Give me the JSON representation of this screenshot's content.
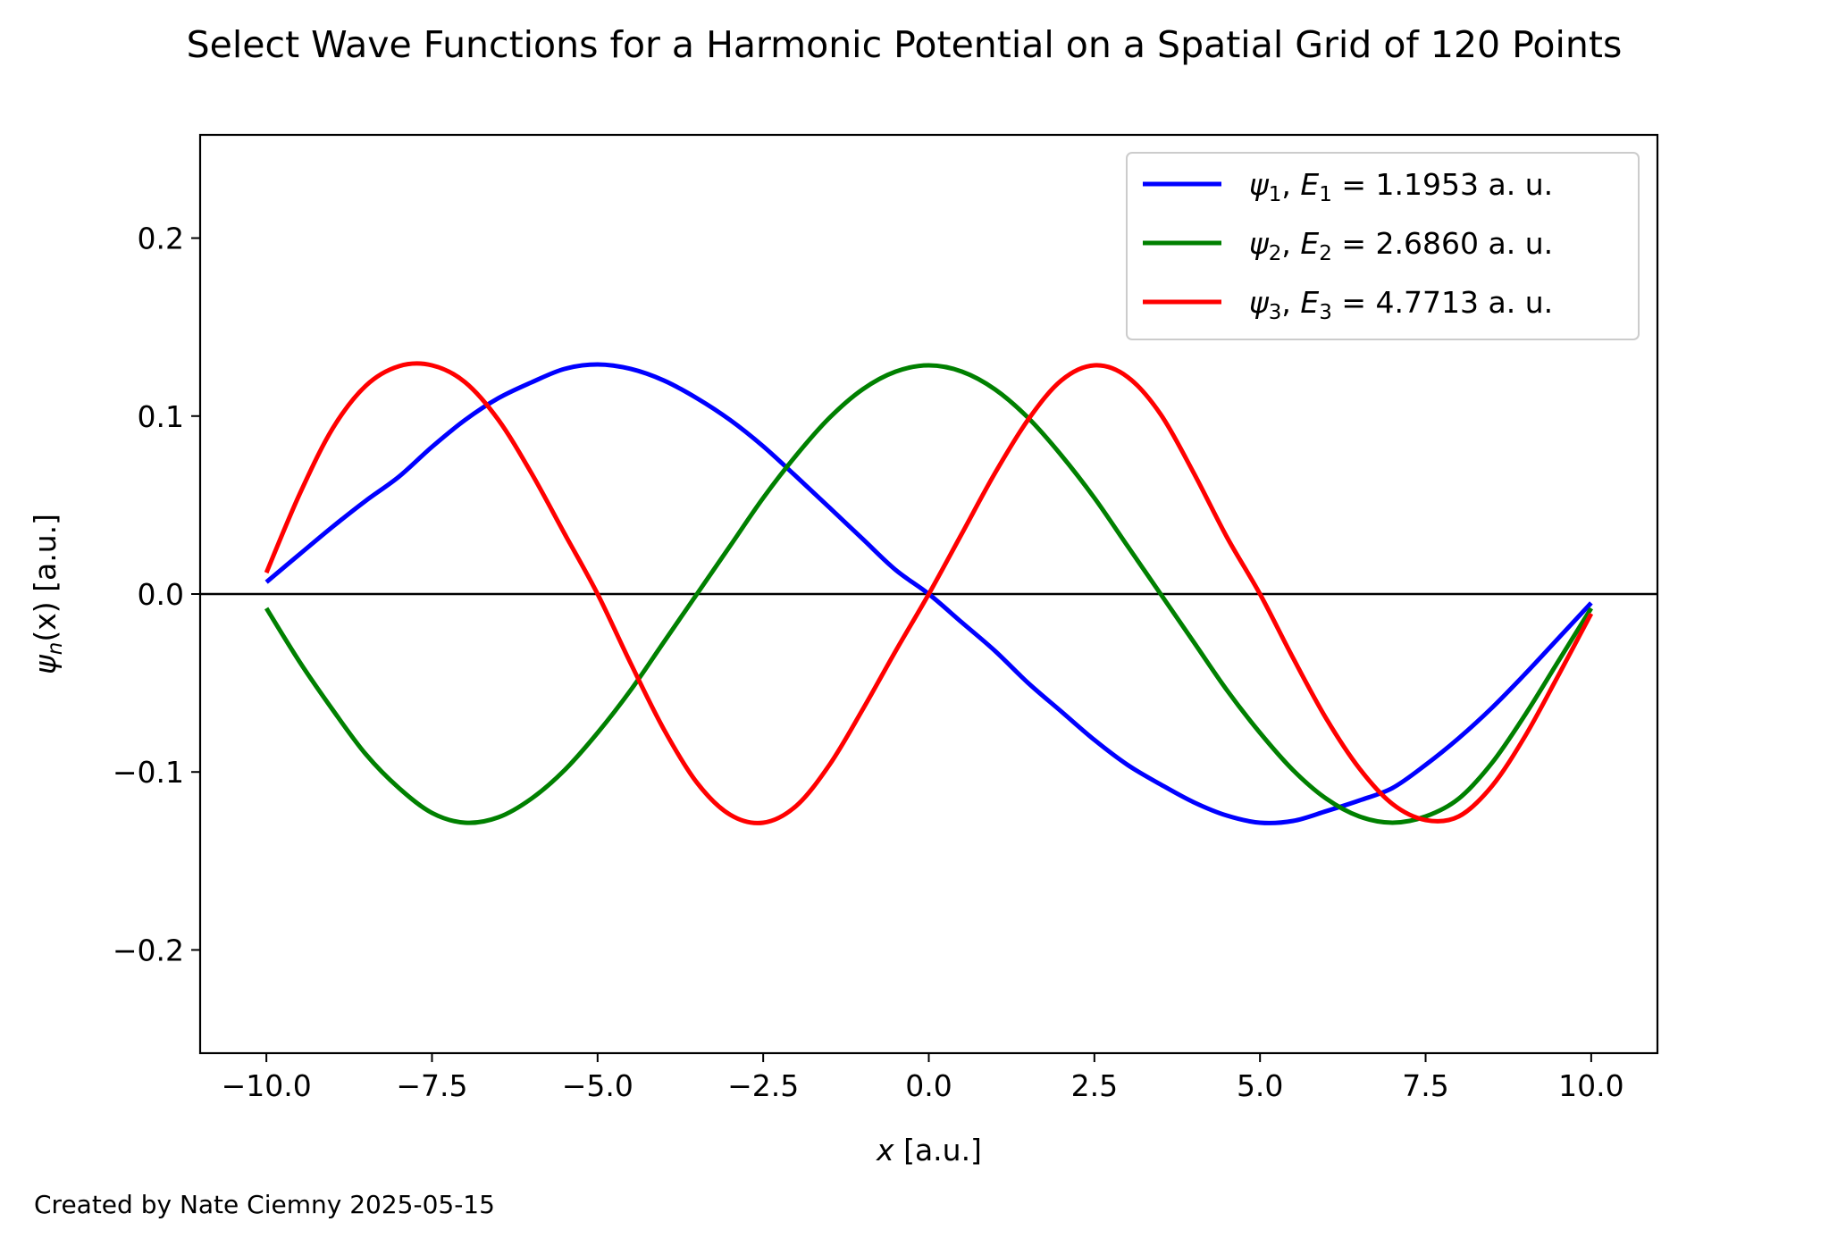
{
  "chart_data": {
    "type": "line",
    "title": "Select Wave Functions for a Harmonic Potential on a Spatial Grid of 120 Points",
    "xlabel_var": "x",
    "xlabel_unit": " [a.u.]",
    "ylabel_var": "ψ",
    "ylabel_sub": "n",
    "ylabel_arg": "(x)",
    "ylabel_unit": " [a.u.]",
    "xlim": [
      -11.0,
      11.0
    ],
    "ylim": [
      -0.258,
      0.258
    ],
    "xticks": [
      -10.0,
      -7.5,
      -5.0,
      -2.5,
      0.0,
      2.5,
      5.0,
      7.5,
      10.0
    ],
    "xtick_labels": [
      "−10.0",
      "−7.5",
      "−5.0",
      "−2.5",
      "0.0",
      "2.5",
      "5.0",
      "7.5",
      "10.0"
    ],
    "yticks": [
      -0.2,
      -0.1,
      0.0,
      0.1,
      0.2
    ],
    "ytick_labels": [
      "−0.2",
      "−0.1",
      "0.0",
      "0.1",
      "0.2"
    ],
    "grid": false,
    "legend_position": "top-right",
    "x": [
      -10.0,
      -9.5,
      -9.0,
      -8.5,
      -8.0,
      -7.5,
      -7.0,
      -6.5,
      -6.0,
      -5.5,
      -5.0,
      -4.5,
      -4.0,
      -3.5,
      -3.0,
      -2.5,
      -2.0,
      -1.5,
      -1.0,
      -0.5,
      0.0,
      0.5,
      1.0,
      1.5,
      2.0,
      2.5,
      3.0,
      3.5,
      4.0,
      4.5,
      5.0,
      5.5,
      6.0,
      6.5,
      7.0,
      7.5,
      8.0,
      8.5,
      9.0,
      9.5,
      10.0
    ],
    "series": [
      {
        "name": "ψ1,  E1 = 1.1953 a.u.",
        "color": "#0000ff",
        "label_sym": "ψ",
        "label_idx": "1",
        "label_e": "E",
        "label_val": " = 1.1953 a. u.",
        "values": [
          0.0067,
          0.0223,
          0.0378,
          0.0524,
          0.0659,
          0.0827,
          0.0978,
          0.11,
          0.1189,
          0.1265,
          0.129,
          0.1265,
          0.12,
          0.11,
          0.0978,
          0.083,
          0.066,
          0.0486,
          0.031,
          0.0135,
          0.0,
          -0.016,
          -0.032,
          -0.05,
          -0.066,
          -0.082,
          -0.096,
          -0.107,
          -0.117,
          -0.1245,
          -0.1285,
          -0.1275,
          -0.122,
          -0.116,
          -0.109,
          -0.096,
          -0.081,
          -0.064,
          -0.045,
          -0.025,
          -0.005
        ]
      },
      {
        "name": "ψ2,  E2 = 2.6860 a.u.",
        "color": "#008000",
        "label_sym": "ψ",
        "label_idx": "2",
        "label_e": "E",
        "label_val": " = 2.6860 a. u.",
        "values": [
          -0.008,
          -0.038,
          -0.065,
          -0.09,
          -0.109,
          -0.123,
          -0.1285,
          -0.1255,
          -0.115,
          -0.099,
          -0.078,
          -0.054,
          -0.027,
          0.0,
          0.027,
          0.054,
          0.078,
          0.099,
          0.115,
          0.125,
          0.1285,
          0.125,
          0.115,
          0.099,
          0.078,
          0.054,
          0.027,
          0.0,
          -0.027,
          -0.054,
          -0.078,
          -0.099,
          -0.115,
          -0.125,
          -0.1285,
          -0.125,
          -0.115,
          -0.095,
          -0.068,
          -0.038,
          -0.008
        ]
      },
      {
        "name": "ψ3,  E3 = 4.7713 a.u.",
        "color": "#ff0000",
        "label_sym": "ψ",
        "label_idx": "3",
        "label_e": "E",
        "label_val": " = 4.7713 a. u.",
        "values": [
          0.012,
          0.056,
          0.093,
          0.117,
          0.128,
          0.1285,
          0.119,
          0.098,
          0.068,
          0.034,
          0.0,
          -0.039,
          -0.076,
          -0.106,
          -0.124,
          -0.1285,
          -0.119,
          -0.096,
          -0.065,
          -0.032,
          0.0,
          0.034,
          0.068,
          0.098,
          0.12,
          0.1285,
          0.122,
          0.101,
          0.068,
          0.032,
          0.0,
          -0.036,
          -0.07,
          -0.098,
          -0.118,
          -0.127,
          -0.125,
          -0.108,
          -0.08,
          -0.046,
          -0.011
        ]
      }
    ],
    "zero_line": true
  },
  "credit": "Created by Nate Ciemny 2025-05-15"
}
